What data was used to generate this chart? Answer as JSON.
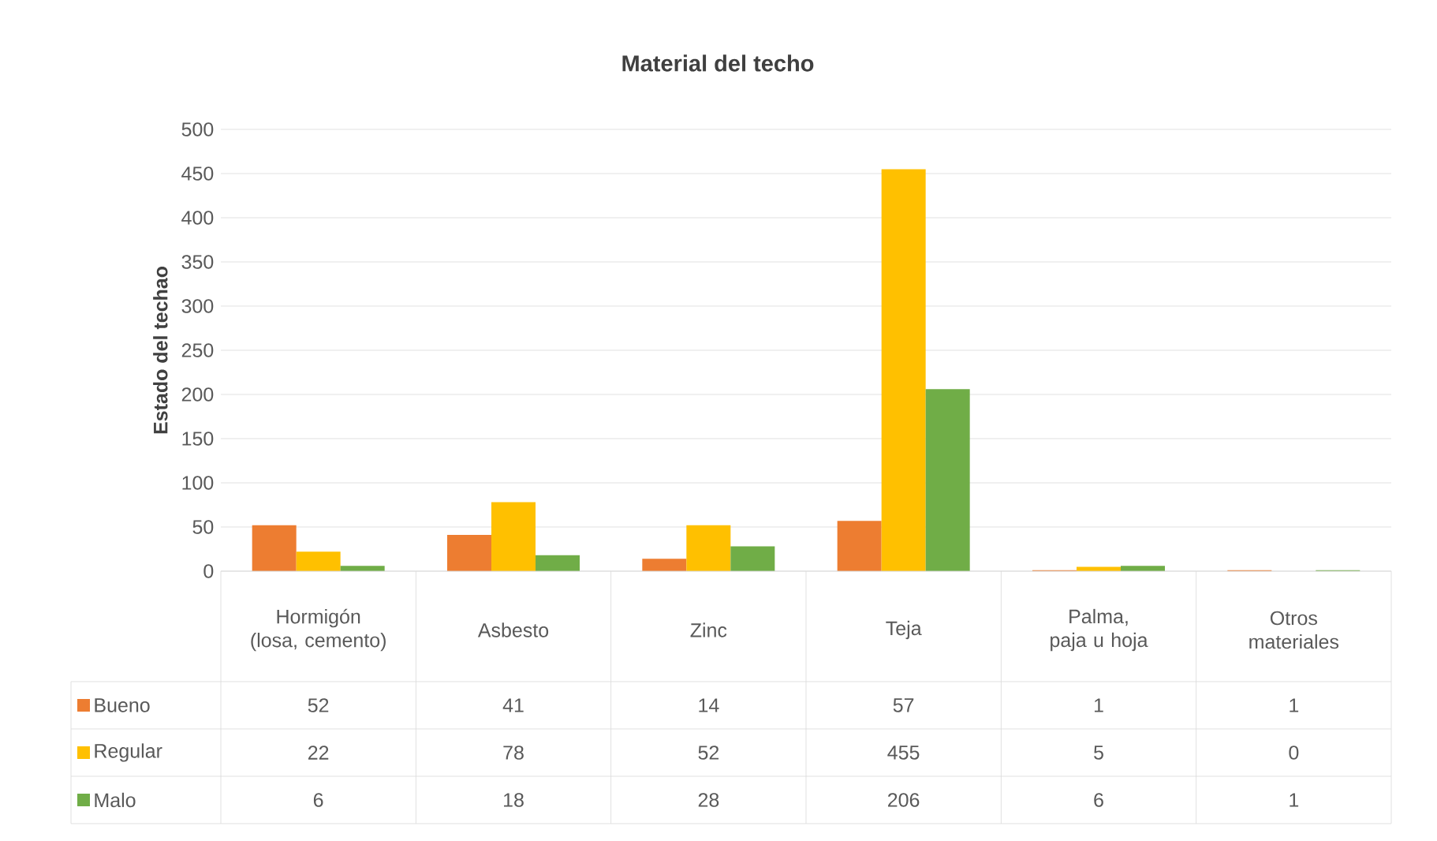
{
  "chart_data": {
    "type": "bar",
    "title": "Material  del techo",
    "ylabel": "Estado del techao",
    "categories": [
      "Hormigón (losa, cemento)",
      "Asbesto",
      "Zinc",
      "Teja",
      "Palma, paja u hoja",
      "Otros materiales"
    ],
    "series": [
      {
        "name": "Bueno",
        "color": "#ed7d31",
        "values": [
          52,
          41,
          14,
          57,
          1,
          1
        ]
      },
      {
        "name": "Regular",
        "color": "#ffc000",
        "values": [
          22,
          78,
          52,
          455,
          5,
          0
        ]
      },
      {
        "name": "Malo",
        "color": "#70ad47",
        "values": [
          6,
          18,
          28,
          206,
          6,
          1
        ]
      }
    ],
    "ylim": [
      0,
      500
    ],
    "yticks": [
      0,
      50,
      100,
      150,
      200,
      250,
      300,
      350,
      400,
      450,
      500
    ],
    "grid": "y",
    "legend": "bottom",
    "data_labels": true
  }
}
